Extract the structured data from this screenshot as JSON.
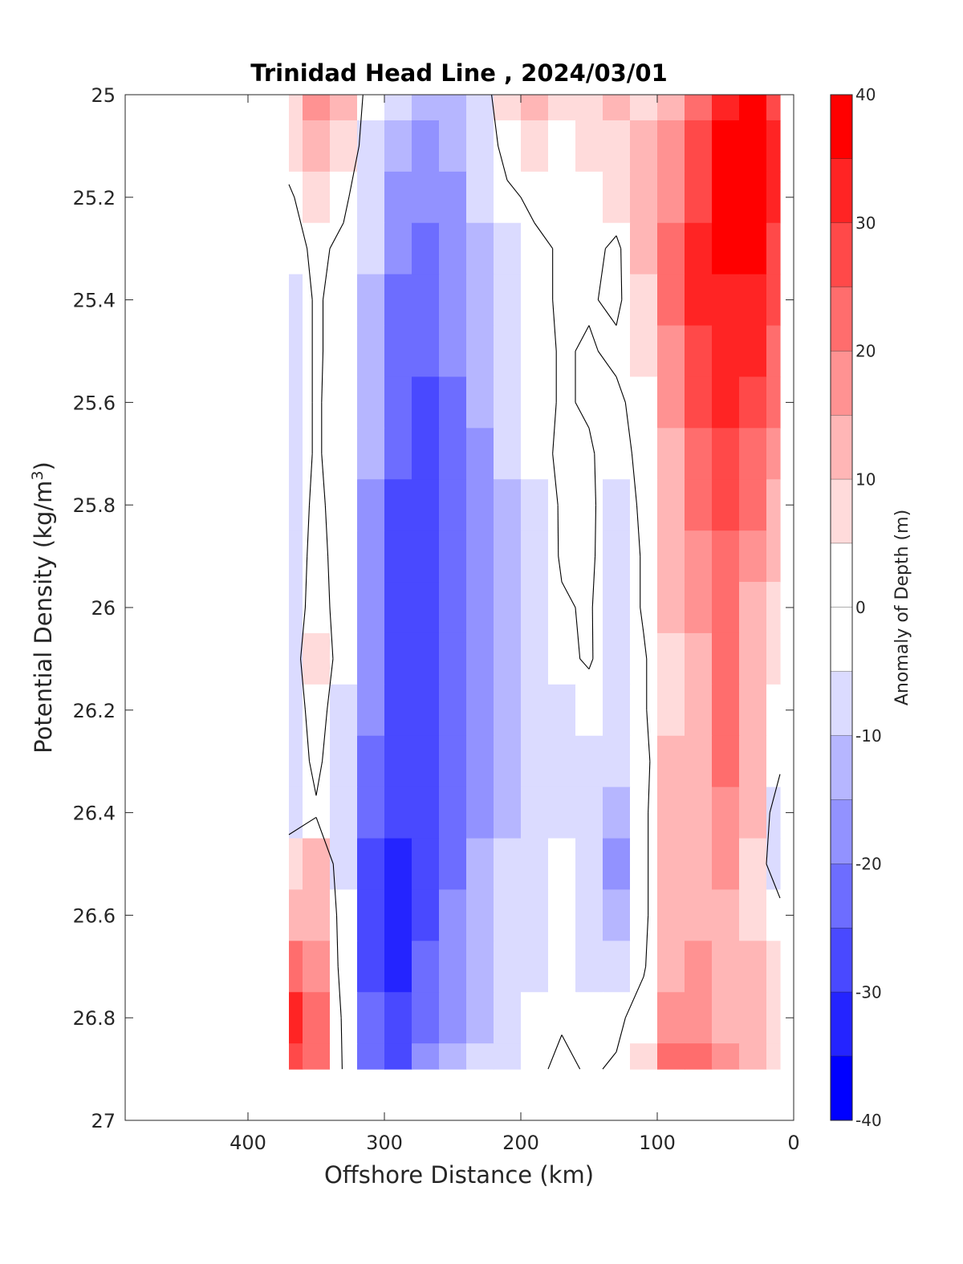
{
  "chart_data": {
    "type": "heatmap",
    "title": "Trinidad Head Line , 2024/03/01",
    "xlabel": "Offshore Distance (km)",
    "ylabel_main": "Potential Density (kg/m",
    "ylabel_sup": "3",
    "ylabel_close": ")",
    "colorbar_label": "Anomaly of Depth (m)",
    "xlim": [
      490,
      0
    ],
    "x_reversed": true,
    "ylim": [
      25,
      27
    ],
    "y_reversed": true,
    "x_ticks": [
      400,
      300,
      200,
      100,
      0
    ],
    "y_ticks": [
      25,
      25.2,
      25.4,
      25.6,
      25.8,
      26,
      26.2,
      26.4,
      26.6,
      26.8,
      27
    ],
    "y_tick_labels": [
      "25",
      "25.2",
      "25.4",
      "25.6",
      "25.8",
      "26",
      "26.2",
      "26.4",
      "26.6",
      "26.8",
      "27"
    ],
    "colorbar_ticks": [
      40,
      30,
      20,
      10,
      0,
      -10,
      -20,
      -30,
      -40
    ],
    "color_levels": [
      {
        "from": 35,
        "to": 40,
        "color": "#ff0000"
      },
      {
        "from": 30,
        "to": 35,
        "color": "#ff2424"
      },
      {
        "from": 25,
        "to": 30,
        "color": "#ff4949"
      },
      {
        "from": 20,
        "to": 25,
        "color": "#ff6d6d"
      },
      {
        "from": 15,
        "to": 20,
        "color": "#ff9292"
      },
      {
        "from": 10,
        "to": 15,
        "color": "#ffb6b6"
      },
      {
        "from": 5,
        "to": 10,
        "color": "#ffdbdb"
      },
      {
        "from": 0,
        "to": 5,
        "color": "#ffffff"
      },
      {
        "from": -5,
        "to": 0,
        "color": "#ffffff"
      },
      {
        "from": -10,
        "to": -5,
        "color": "#dbdbff"
      },
      {
        "from": -15,
        "to": -10,
        "color": "#b6b6ff"
      },
      {
        "from": -20,
        "to": -15,
        "color": "#9292ff"
      },
      {
        "from": -25,
        "to": -20,
        "color": "#6d6dff"
      },
      {
        "from": -30,
        "to": -25,
        "color": "#4949ff"
      },
      {
        "from": -35,
        "to": -30,
        "color": "#2424ff"
      },
      {
        "from": -40,
        "to": -35,
        "color": "#0000ff"
      }
    ],
    "zero_contour": true,
    "grid": false,
    "data_x_range": [
      370,
      10
    ],
    "data_y_range": [
      25,
      26.9
    ],
    "stations_km": [
      370,
      350,
      330,
      310,
      290,
      270,
      250,
      230,
      210,
      190,
      170,
      150,
      130,
      110,
      90,
      70,
      50,
      30,
      10
    ],
    "density_levels": [
      25,
      25.1,
      25.2,
      25.3,
      25.4,
      25.5,
      25.6,
      25.7,
      25.8,
      25.9,
      26,
      26.1,
      26.2,
      26.3,
      26.4,
      26.5,
      26.6,
      26.7,
      26.8,
      26.9
    ],
    "anomaly_m": [
      [
        8,
        18,
        10,
        -4,
        -10,
        -14,
        -12,
        -6,
        8,
        12,
        6,
        8,
        10,
        8,
        14,
        24,
        32,
        36,
        28
      ],
      [
        6,
        14,
        8,
        -6,
        -14,
        -18,
        -14,
        -8,
        4,
        8,
        4,
        6,
        8,
        10,
        16,
        26,
        36,
        38,
        30
      ],
      [
        -2,
        8,
        2,
        -8,
        -18,
        -20,
        -16,
        -10,
        -2,
        2,
        1,
        2,
        6,
        12,
        18,
        28,
        36,
        38,
        30
      ],
      [
        -4,
        2,
        -2,
        -10,
        -20,
        -22,
        -18,
        -12,
        -6,
        -2,
        1,
        3,
        -2,
        10,
        20,
        30,
        35,
        36,
        28
      ],
      [
        -6,
        1,
        -3,
        -12,
        -22,
        -24,
        -20,
        -14,
        -8,
        -4,
        2,
        1,
        -2,
        8,
        20,
        30,
        34,
        34,
        26
      ],
      [
        -6,
        1,
        -3,
        -14,
        -24,
        -25,
        -20,
        -15,
        -8,
        -4,
        1,
        -1,
        2,
        6,
        18,
        28,
        33,
        32,
        24
      ],
      [
        -6,
        1,
        -4,
        -14,
        -24,
        -26,
        -21,
        -15,
        -9,
        -4,
        1,
        -1,
        -2,
        4,
        16,
        26,
        30,
        28,
        22
      ],
      [
        -6,
        1,
        -4,
        -15,
        -25,
        -28,
        -22,
        -16,
        -10,
        -4,
        2,
        1,
        -4,
        3,
        14,
        24,
        28,
        24,
        18
      ],
      [
        -6,
        2,
        -4,
        -16,
        -26,
        -29,
        -23,
        -17,
        -12,
        -6,
        1,
        2,
        -6,
        2,
        12,
        20,
        26,
        20,
        14
      ],
      [
        -6,
        3,
        -4,
        -17,
        -27,
        -30,
        -24,
        -18,
        -12,
        -7,
        1,
        2,
        -7,
        1,
        10,
        16,
        24,
        16,
        12
      ],
      [
        -6,
        4,
        -4,
        -18,
        -28,
        -30,
        -25,
        -18,
        -12,
        -8,
        -1,
        1,
        -7,
        1,
        10,
        16,
        24,
        14,
        8
      ],
      [
        -6,
        8,
        -5,
        -20,
        -28,
        -30,
        -25,
        -18,
        -12,
        -8,
        -2,
        1,
        -6,
        -1,
        8,
        14,
        22,
        14,
        6
      ],
      [
        -6,
        4,
        -6,
        -20,
        -28,
        -30,
        -24,
        -18,
        -12,
        -8,
        -6,
        -4,
        -7,
        -1,
        8,
        12,
        20,
        14,
        4
      ],
      [
        -6,
        2,
        -7,
        -22,
        -28,
        -28,
        -22,
        -17,
        -12,
        -8,
        -6,
        -7,
        -8,
        -3,
        10,
        14,
        20,
        12,
        2
      ],
      [
        -6,
        -1,
        -8,
        -24,
        -30,
        -26,
        -22,
        -16,
        -12,
        -8,
        -6,
        -8,
        -12,
        -2,
        10,
        14,
        18,
        10,
        -6
      ],
      [
        8,
        10,
        -6,
        -26,
        -32,
        -26,
        -22,
        -15,
        -10,
        -7,
        -4,
        -8,
        -16,
        -2,
        10,
        14,
        16,
        8,
        -8
      ],
      [
        14,
        12,
        -4,
        -28,
        -32,
        -26,
        -20,
        -14,
        -10,
        -6,
        -5,
        -10,
        -12,
        -2,
        10,
        14,
        14,
        8,
        4
      ],
      [
        22,
        16,
        -4,
        -28,
        -34,
        -24,
        -18,
        -12,
        -8,
        -6,
        -4,
        -8,
        -8,
        -1,
        12,
        16,
        12,
        10,
        6
      ],
      [
        32,
        22,
        -2,
        -24,
        -30,
        -22,
        -16,
        -12,
        -8,
        -4,
        -1,
        -2,
        -2,
        4,
        16,
        18,
        14,
        10,
        8
      ],
      [
        28,
        20,
        -1,
        -22,
        -28,
        -20,
        -14,
        -10,
        -8,
        -2,
        2,
        -1,
        1,
        6,
        22,
        20,
        16,
        12,
        8
      ]
    ]
  }
}
